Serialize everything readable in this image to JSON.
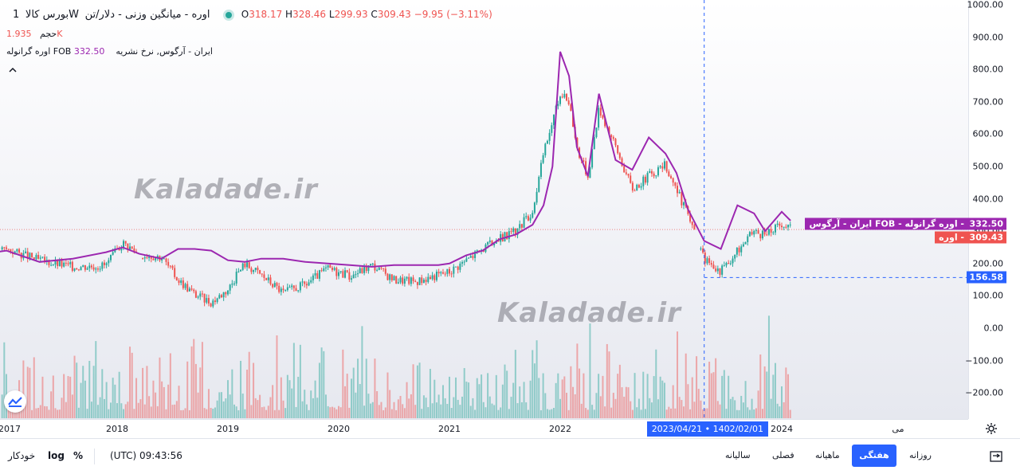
{
  "legend": {
    "symbol": "بورس کالا",
    "interval": "1W",
    "title": "اوره - میانگین وزنی - دلار/تن",
    "open_label": "O",
    "open_value": "318.17",
    "high_label": "H",
    "high_value": "328.46",
    "low_label": "L",
    "low_value": "299.93",
    "close_label": "C",
    "close_value": "309.43",
    "change": "−9.95 (−3.11%)",
    "volume_label": "حجم",
    "volume_value": "1.935K",
    "indicator_label": "اوره گرانوله FOB ایران - آرگوس, نرخ نشریه",
    "indicator_value": "332.50"
  },
  "watermark": "Kaladade.ir",
  "price_axis": {
    "ticks": [
      "1000.00",
      "900.00",
      "800.00",
      "700.00",
      "600.00",
      "500.00",
      "400.00",
      "300.00",
      "200.00",
      "100.00",
      "0.00",
      "−100.00",
      "−200.00"
    ],
    "indicator_badge": "332.50",
    "indicator_badge_name": "ایران - آرگوس FOB - اوره گرانوله",
    "price_badge": "309.43",
    "price_badge_name": "اوره",
    "crosshair_badge": "156.58"
  },
  "time_axis": {
    "ticks": [
      "2017",
      "2018",
      "2019",
      "2020",
      "2021",
      "2022",
      "2024",
      "می"
    ],
    "crosshair_label": "2023/04/21 • 1402/02/01"
  },
  "bottom_bar": {
    "auto": "خودکار",
    "log": "log",
    "percent": "%",
    "clock": "(UTC) 09:43:56",
    "timeframes": [
      "سالیانه",
      "فصلی",
      "ماهیانه",
      "هفتگی",
      "روزانه"
    ],
    "active_timeframe": "هفتگی"
  },
  "colors": {
    "up": "#26a69a",
    "down": "#ef5350",
    "indicator": "#9c27b0",
    "crosshair": "#2962ff",
    "accent": "#2962ff"
  },
  "chart_data": {
    "type": "line",
    "title": "اوره - میانگین وزنی - دلار/تن",
    "xlabel": "",
    "ylabel": "",
    "ylim": [
      -280,
      1000
    ],
    "grid": false,
    "x": [
      2016.5,
      2017.0,
      2017.3,
      2017.6,
      2017.9,
      2018.05,
      2018.2,
      2018.4,
      2018.55,
      2018.7,
      2018.85,
      2019.0,
      2019.15,
      2019.3,
      2019.5,
      2019.7,
      2019.9,
      2020.1,
      2020.3,
      2020.5,
      2020.7,
      2020.9,
      2021.0,
      2021.15,
      2021.3,
      2021.45,
      2021.6,
      2021.75,
      2021.85,
      2021.93,
      2022.0,
      2022.08,
      2022.15,
      2022.25,
      2022.35,
      2022.5,
      2022.65,
      2022.8,
      2022.95,
      2023.05,
      2023.15,
      2023.3,
      2023.45,
      2023.6,
      2023.75,
      2023.85,
      2024.0,
      2024.08
    ],
    "series": [
      {
        "name": "اوره",
        "values": [
          205,
          245,
          210,
          190,
          195,
          265,
          230,
          220,
          150,
          105,
          80,
          120,
          200,
          165,
          110,
          135,
          185,
          160,
          195,
          150,
          145,
          165,
          175,
          210,
          245,
          275,
          300,
          360,
          540,
          640,
          720,
          700,
          560,
          470,
          680,
          560,
          430,
          470,
          505,
          430,
          350,
          215,
          175,
          240,
          300,
          285,
          325,
          309.43
        ]
      },
      {
        "name": "اوره گرانوله FOB ایران - آرگوس, نرخ نشریه",
        "values": [
          215,
          240,
          205,
          215,
          235,
          250,
          230,
          215,
          245,
          245,
          240,
          210,
          205,
          215,
          215,
          205,
          200,
          195,
          190,
          195,
          195,
          195,
          200,
          225,
          240,
          275,
          290,
          320,
          380,
          500,
          855,
          780,
          560,
          470,
          725,
          520,
          490,
          590,
          540,
          480,
          370,
          270,
          245,
          380,
          355,
          300,
          360,
          332.5
        ]
      }
    ],
    "volume": {
      "label": "حجم",
      "last_value": "1.935K"
    },
    "annotations": {
      "crosshair_date": "2023/04/21 • 1402/02/01",
      "crosshair_price": "156.58",
      "last_price": "309.43",
      "last_indicator": "332.50"
    }
  }
}
